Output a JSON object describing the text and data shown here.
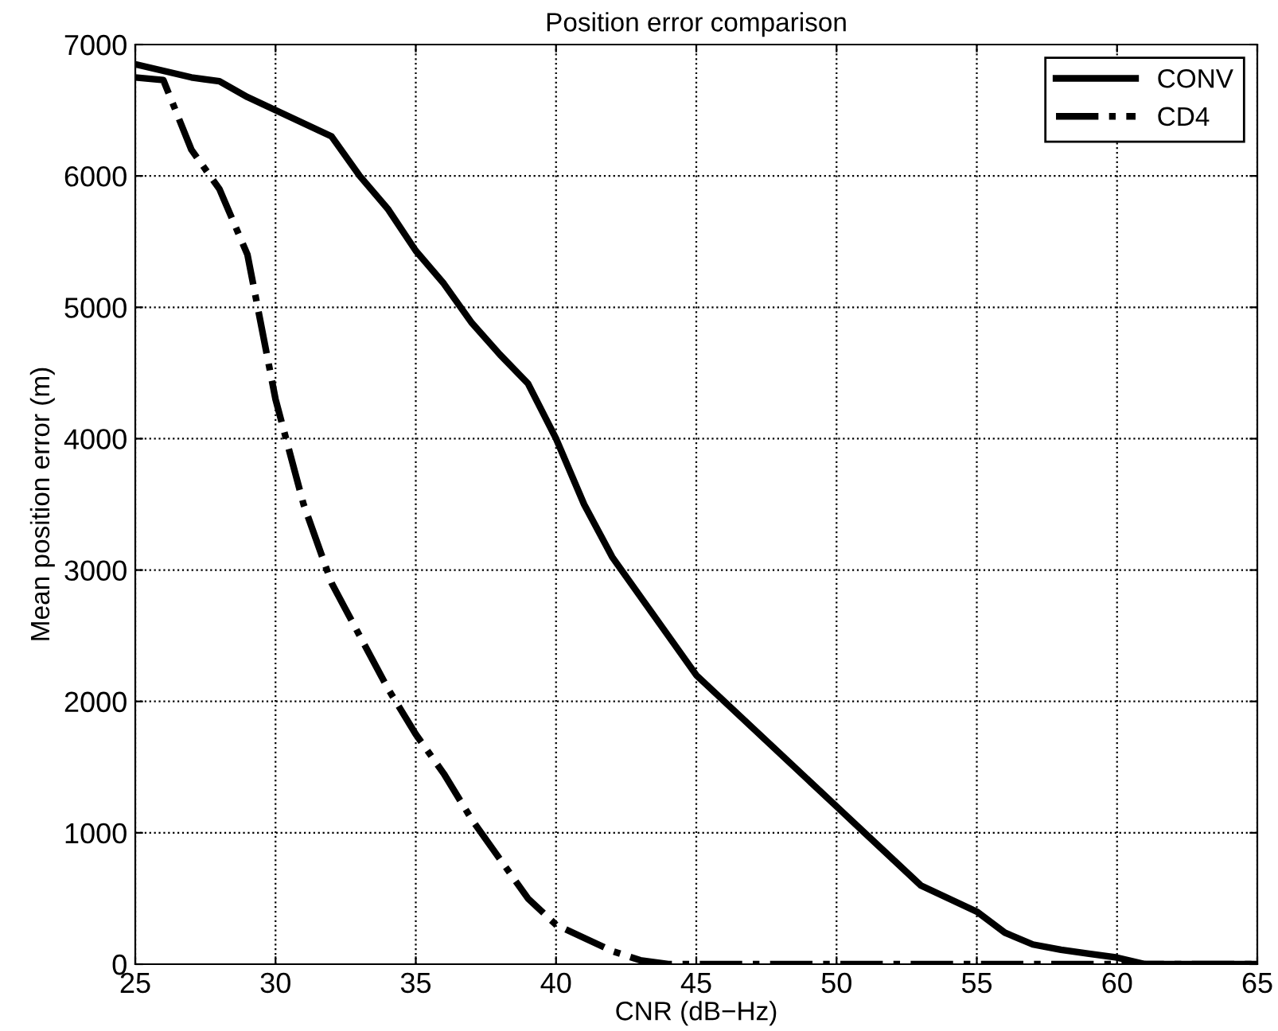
{
  "chart_data": {
    "type": "line",
    "title": "Position error comparison",
    "xlabel": "CNR (dB−Hz)",
    "ylabel": "Mean position error (m)",
    "x": [
      25,
      26,
      27,
      28,
      29,
      30,
      31,
      32,
      33,
      34,
      35,
      36,
      37,
      38,
      39,
      40,
      41,
      42,
      43,
      44,
      45,
      46,
      47,
      48,
      49,
      50,
      51,
      52,
      53,
      54,
      55,
      56,
      57,
      58,
      59,
      60,
      61,
      62,
      63,
      64,
      65
    ],
    "series": [
      {
        "name": "CONV",
        "color": "#000000",
        "line_style": "solid",
        "values": [
          6850,
          6800,
          6750,
          6720,
          6600,
          6500,
          6400,
          6300,
          6000,
          5750,
          5430,
          5180,
          4880,
          4640,
          4420,
          4000,
          3500,
          3100,
          2800,
          2500,
          2200,
          2000,
          1800,
          1600,
          1400,
          1200,
          1000,
          800,
          600,
          500,
          400,
          240,
          150,
          110,
          80,
          50,
          0,
          0,
          0,
          0,
          0
        ]
      },
      {
        "name": "CD4",
        "color": "#000000",
        "line_style": "dashdot",
        "values": [
          6750,
          6730,
          6200,
          5900,
          5400,
          4300,
          3500,
          2900,
          2500,
          2100,
          1750,
          1450,
          1100,
          800,
          500,
          300,
          200,
          100,
          30,
          0,
          0,
          0,
          0,
          0,
          0,
          0,
          0,
          0,
          0,
          0,
          0,
          0,
          0,
          0,
          0,
          0,
          0,
          0,
          0,
          0,
          0
        ]
      }
    ],
    "xlim": [
      25,
      65
    ],
    "xticks": [
      25,
      30,
      35,
      40,
      45,
      50,
      55,
      60,
      65
    ],
    "ylim": [
      0,
      7000
    ],
    "yticks": [
      0,
      1000,
      2000,
      3000,
      4000,
      5000,
      6000,
      7000
    ],
    "grid": true,
    "legend": "top right",
    "marker": "none"
  }
}
